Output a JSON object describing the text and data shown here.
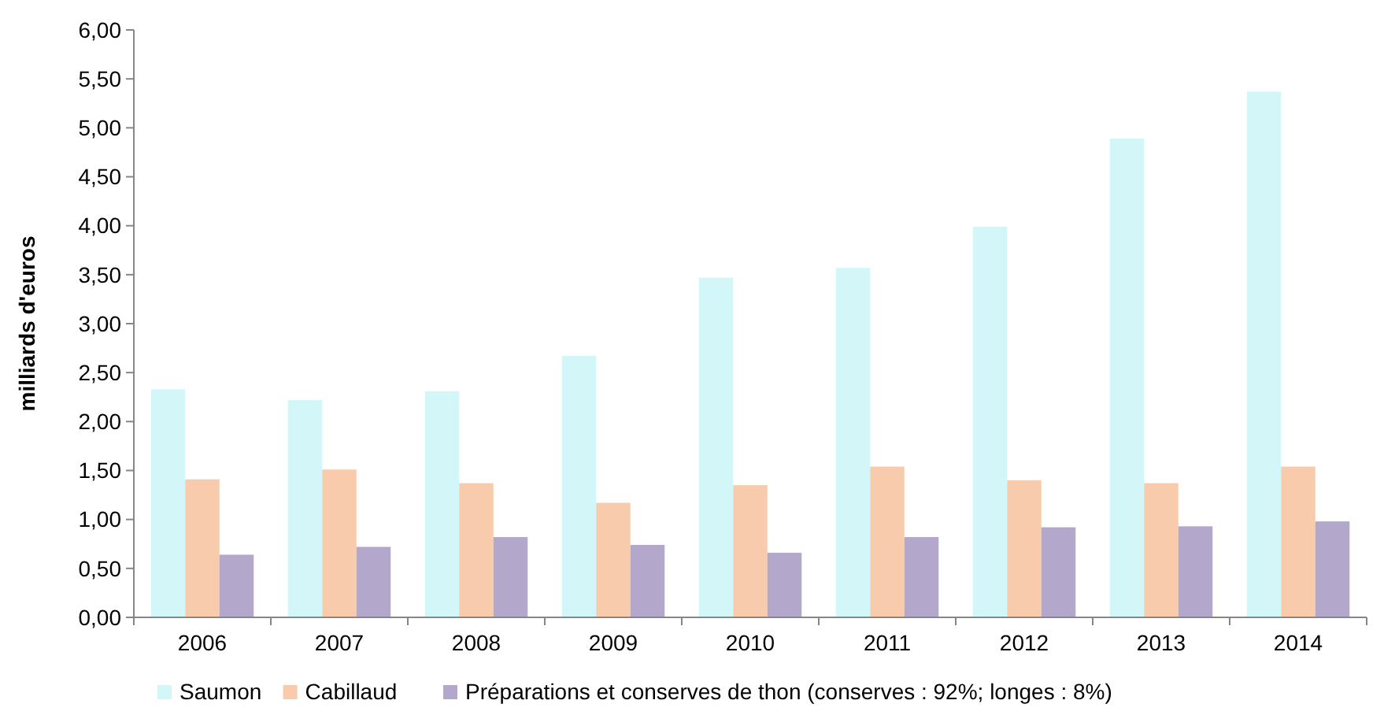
{
  "chart_data": {
    "type": "bar",
    "ylabel": "milliards d'euros",
    "categories": [
      "2006",
      "2007",
      "2008",
      "2009",
      "2010",
      "2011",
      "2012",
      "2013",
      "2014"
    ],
    "series": [
      {
        "name": "Saumon",
        "color": "#d3f7f9",
        "values": [
          2.33,
          2.22,
          2.31,
          2.67,
          3.47,
          3.57,
          3.99,
          4.89,
          5.37
        ]
      },
      {
        "name": "Cabillaud",
        "color": "#f8cbad",
        "values": [
          1.41,
          1.51,
          1.37,
          1.17,
          1.35,
          1.54,
          1.4,
          1.37,
          1.54
        ]
      },
      {
        "name": "Préparations et conserves de thon (conserves : 92%; longes : 8%)",
        "color": "#b4a7cc",
        "values": [
          0.64,
          0.72,
          0.82,
          0.74,
          0.66,
          0.82,
          0.92,
          0.93,
          0.98
        ]
      }
    ],
    "ylim": [
      0,
      6
    ],
    "yticks": [
      {
        "value": 0,
        "label": "0,00"
      },
      {
        "value": 0.5,
        "label": "0,50"
      },
      {
        "value": 1,
        "label": "1,00"
      },
      {
        "value": 1.5,
        "label": "1,50"
      },
      {
        "value": 2,
        "label": "2,00"
      },
      {
        "value": 2.5,
        "label": "2,50"
      },
      {
        "value": 3,
        "label": "3,00"
      },
      {
        "value": 3.5,
        "label": "3,50"
      },
      {
        "value": 4,
        "label": "4,00"
      },
      {
        "value": 4.5,
        "label": "4,50"
      },
      {
        "value": 5,
        "label": "5,00"
      },
      {
        "value": 5.5,
        "label": "5,50"
      },
      {
        "value": 6,
        "label": "6,00"
      }
    ],
    "grid": false,
    "legend": "bottom"
  }
}
